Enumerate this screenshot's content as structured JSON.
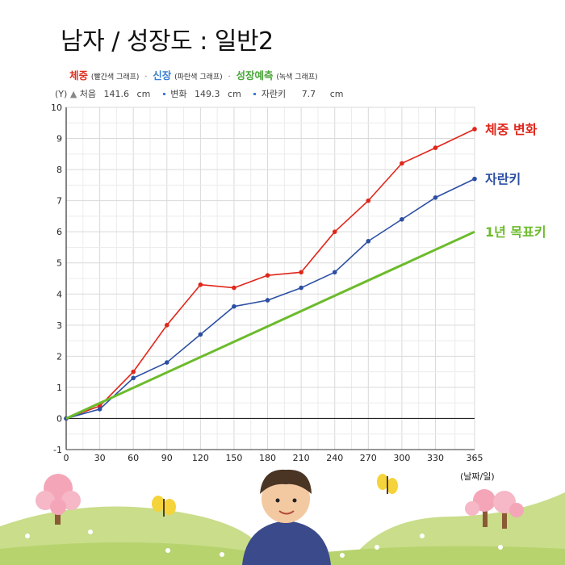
{
  "header": {
    "title": "남자 / 성장도 : 일반2",
    "legend": {
      "weight_big": "체중",
      "weight_small": "(빨간색 그래프)",
      "height_big": "신장",
      "height_small": "(파란색 그래프)",
      "predict_big": "성장예측",
      "predict_small": "(녹색 그래프)",
      "separator": "·",
      "weight_color": "#e0301e",
      "height_color": "#3b7fd1",
      "predict_color": "#4aa53a"
    },
    "stats": {
      "y_unit": "(Y)",
      "start_label": "처음",
      "start_value": "141.6",
      "start_unit": "cm",
      "change_label": "변화",
      "change_value": "149.3",
      "change_unit": "cm",
      "grow_label": "자란키",
      "grow_value": "7.7",
      "grow_unit": "cm"
    },
    "x_unit": "(날짜/일)"
  },
  "chart_data": {
    "type": "line",
    "x": [
      0,
      30,
      60,
      90,
      120,
      150,
      180,
      210,
      240,
      270,
      300,
      330,
      365
    ],
    "xlim": [
      0,
      365
    ],
    "ylim": [
      -1,
      10
    ],
    "xticks": [
      "0",
      "30",
      "60",
      "90",
      "120",
      "150",
      "180",
      "210",
      "240",
      "270",
      "300",
      "330",
      "365"
    ],
    "yticks": [
      "-1",
      "0",
      "1",
      "2",
      "3",
      "4",
      "5",
      "6",
      "7",
      "8",
      "9",
      "10"
    ],
    "grid": true,
    "series": [
      {
        "name": "체중 변화",
        "color": "#e0261a",
        "markers": true,
        "x": [
          0,
          30,
          60,
          90,
          120,
          150,
          180,
          210,
          240,
          270,
          300,
          330,
          365
        ],
        "values": [
          0,
          0.4,
          1.5,
          3.0,
          4.3,
          4.2,
          4.6,
          4.7,
          6.0,
          7.0,
          8.2,
          8.7,
          9.3
        ]
      },
      {
        "name": "자란키",
        "color": "#2d4fa3",
        "markers": true,
        "x": [
          0,
          30,
          60,
          90,
          120,
          150,
          180,
          210,
          240,
          270,
          300,
          330,
          365
        ],
        "values": [
          0,
          0.3,
          1.3,
          1.8,
          2.7,
          3.6,
          3.8,
          4.2,
          4.7,
          5.7,
          6.4,
          7.1,
          7.7
        ]
      },
      {
        "name": "1년 목표키",
        "color": "#6cbb2c",
        "markers": false,
        "x": [
          0,
          365
        ],
        "values": [
          0,
          6
        ]
      }
    ]
  },
  "decor": {
    "tree_color": "#f4a6b8",
    "hill_color": "#c9dd8a",
    "butterfly_color": "#f5d33a"
  }
}
